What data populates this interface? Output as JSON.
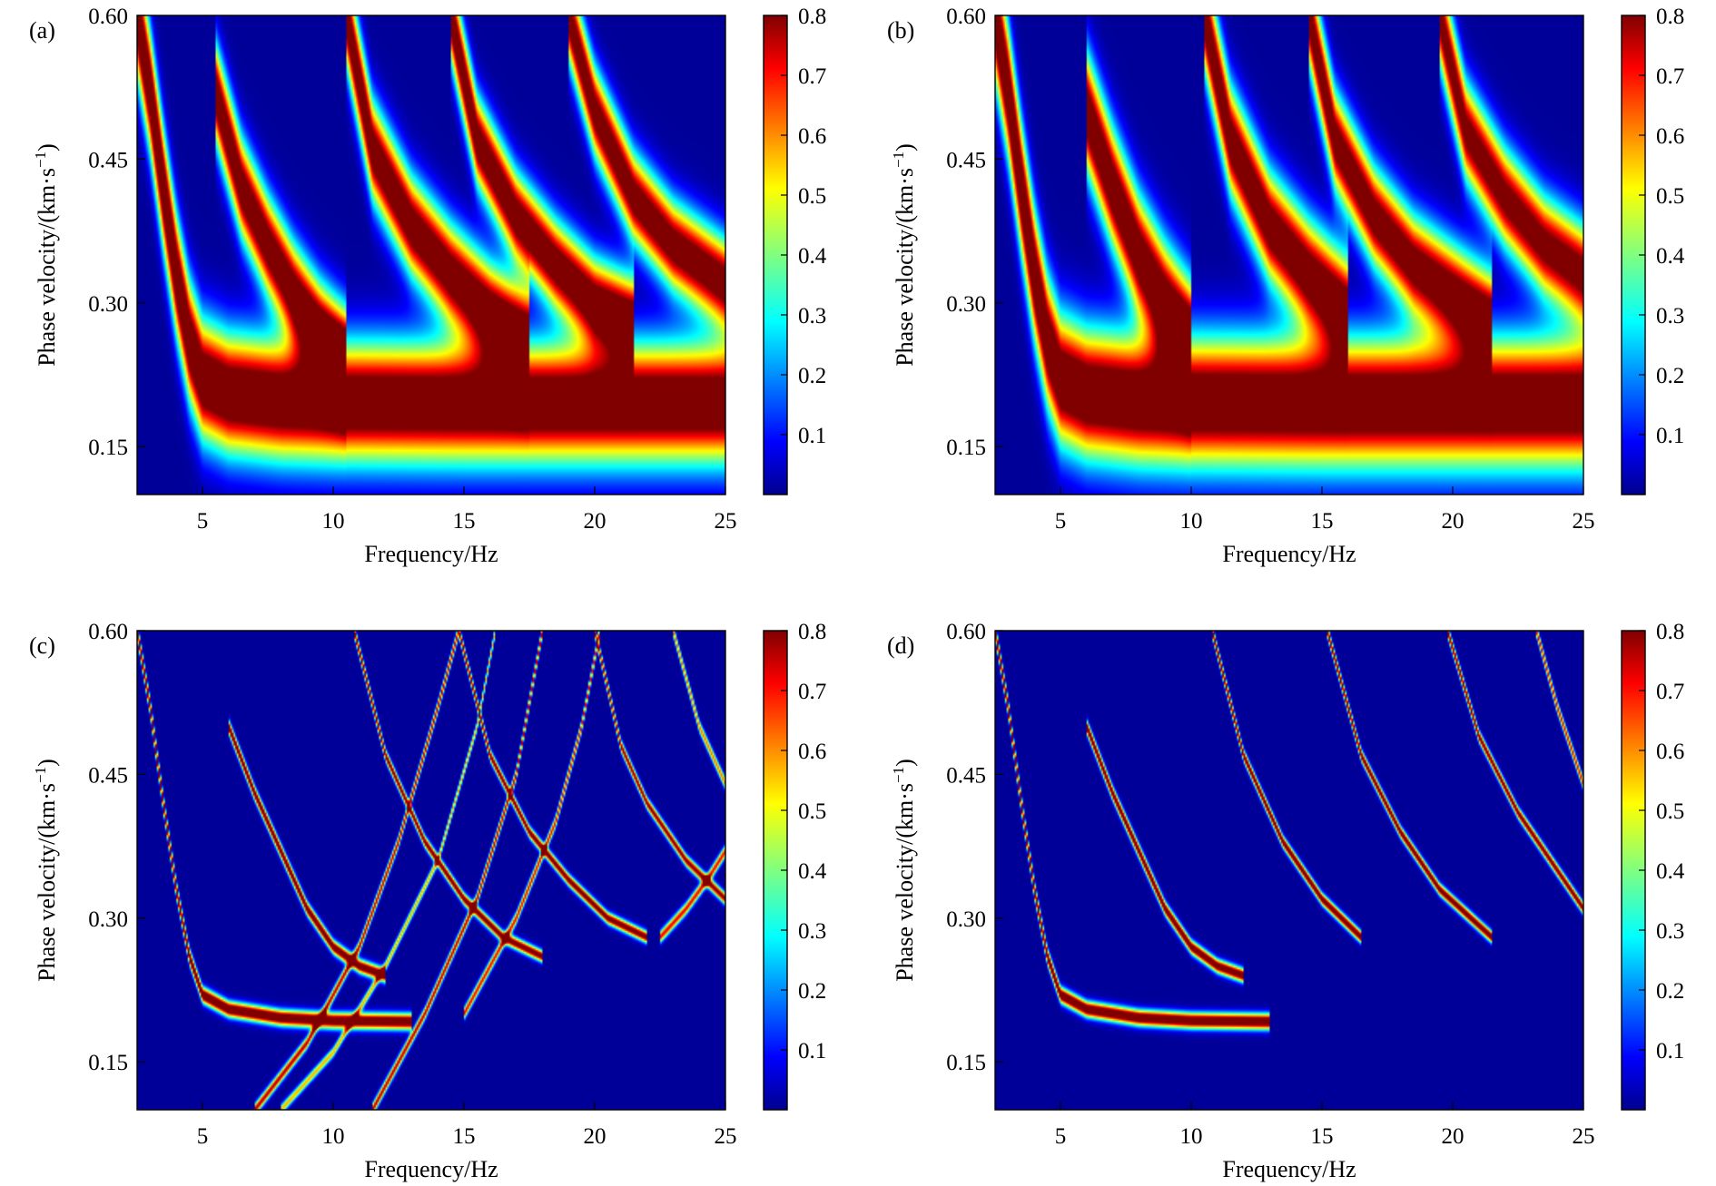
{
  "colors": {
    "colormap": "jet",
    "background_low": "#00008f",
    "ridge_high": "#800000"
  },
  "chart_data": [
    {
      "panel_label": "(a)",
      "type": "heatmap",
      "xlabel": "Frequency/Hz",
      "ylabel_prefix": "Phase velocity/(km·s",
      "ylabel_sup": "−1",
      "ylabel_suffix": ")",
      "xlim": [
        2.5,
        25
      ],
      "ylim": [
        0.1,
        0.6
      ],
      "xticks": [
        5,
        10,
        15,
        20,
        25
      ],
      "xtick_labels": [
        "5",
        "10",
        "15",
        "20",
        "25"
      ],
      "yticks": [
        0.15,
        0.3,
        0.45,
        0.6
      ],
      "ytick_labels": [
        "0.15",
        "0.30",
        "0.45",
        "0.60"
      ],
      "colorbar": {
        "ticks": [
          0.1,
          0.2,
          0.3,
          0.4,
          0.5,
          0.6,
          0.7,
          0.8
        ],
        "tick_labels": [
          "0.1",
          "0.2",
          "0.3",
          "0.4",
          "0.5",
          "0.6",
          "0.7",
          "0.8"
        ],
        "range": [
          0,
          0.8
        ]
      },
      "modes": [
        {
          "x": [
            2.5,
            3.0,
            3.5,
            4.0,
            4.5,
            5.0,
            6.0,
            8.0,
            10.0,
            15.0,
            20.0,
            25.0
          ],
          "y": [
            0.6,
            0.52,
            0.42,
            0.33,
            0.26,
            0.22,
            0.205,
            0.198,
            0.196,
            0.195,
            0.195,
            0.195
          ],
          "amp": 0.95,
          "width": 0.06
        },
        {
          "x": [
            5.5,
            6.5,
            7.5,
            8.5,
            9.5,
            10.5
          ],
          "y": [
            0.52,
            0.42,
            0.36,
            0.31,
            0.27,
            0.24
          ],
          "amp": 0.9,
          "width": 0.05
        },
        {
          "x": [
            10.5,
            11.5,
            13.0,
            14.5,
            16.0,
            17.5
          ],
          "y": [
            0.6,
            0.46,
            0.38,
            0.33,
            0.29,
            0.26
          ],
          "amp": 0.9,
          "width": 0.05
        },
        {
          "x": [
            14.5,
            15.5,
            17.0,
            18.5,
            20.0,
            21.5
          ],
          "y": [
            0.6,
            0.47,
            0.39,
            0.34,
            0.3,
            0.28
          ],
          "amp": 0.9,
          "width": 0.045
        },
        {
          "x": [
            19.0,
            20.0,
            21.5,
            23.0,
            24.5,
            25.0
          ],
          "y": [
            0.6,
            0.5,
            0.41,
            0.36,
            0.33,
            0.32
          ],
          "amp": 0.88,
          "width": 0.045
        }
      ]
    },
    {
      "panel_label": "(b)",
      "type": "heatmap",
      "xlabel": "Frequency/Hz",
      "ylabel_prefix": "Phase velocity/(km·s",
      "ylabel_sup": "−1",
      "ylabel_suffix": ")",
      "xlim": [
        2.5,
        25
      ],
      "ylim": [
        0.1,
        0.6
      ],
      "xticks": [
        5,
        10,
        15,
        20,
        25
      ],
      "xtick_labels": [
        "5",
        "10",
        "15",
        "20",
        "25"
      ],
      "yticks": [
        0.15,
        0.3,
        0.45,
        0.6
      ],
      "ytick_labels": [
        "0.15",
        "0.30",
        "0.45",
        "0.60"
      ],
      "colorbar": {
        "ticks": [
          0.1,
          0.2,
          0.3,
          0.4,
          0.5,
          0.6,
          0.7,
          0.8
        ],
        "tick_labels": [
          "0.1",
          "0.2",
          "0.3",
          "0.4",
          "0.5",
          "0.6",
          "0.7",
          "0.8"
        ],
        "range": [
          0,
          0.8
        ]
      },
      "modes": [
        {
          "x": [
            2.5,
            3.0,
            3.5,
            4.0,
            4.5,
            5.0,
            6.0,
            8.0,
            10.0,
            15.0,
            20.0,
            25.0
          ],
          "y": [
            0.6,
            0.52,
            0.42,
            0.33,
            0.26,
            0.22,
            0.205,
            0.198,
            0.196,
            0.195,
            0.195,
            0.195
          ],
          "amp": 0.95,
          "width": 0.065
        },
        {
          "x": [
            6.0,
            7.0,
            8.0,
            9.0,
            10.0
          ],
          "y": [
            0.5,
            0.42,
            0.35,
            0.3,
            0.26
          ],
          "amp": 0.92,
          "width": 0.06
        },
        {
          "x": [
            10.5,
            11.5,
            13.0,
            14.5,
            16.0
          ],
          "y": [
            0.6,
            0.47,
            0.38,
            0.33,
            0.29
          ],
          "amp": 0.9,
          "width": 0.055
        },
        {
          "x": [
            14.5,
            15.5,
            17.0,
            18.5,
            20.0,
            21.5
          ],
          "y": [
            0.6,
            0.47,
            0.39,
            0.34,
            0.31,
            0.28
          ],
          "amp": 0.88,
          "width": 0.05
        },
        {
          "x": [
            19.5,
            20.5,
            22.0,
            23.5,
            25.0
          ],
          "y": [
            0.6,
            0.48,
            0.41,
            0.36,
            0.33
          ],
          "amp": 0.85,
          "width": 0.05
        }
      ]
    },
    {
      "panel_label": "(c)",
      "type": "heatmap",
      "xlabel": "Frequency/Hz",
      "ylabel_prefix": "Phase velocity/(km·s",
      "ylabel_sup": "−1",
      "ylabel_suffix": ")",
      "xlim": [
        2.5,
        25
      ],
      "ylim": [
        0.1,
        0.6
      ],
      "xticks": [
        5,
        10,
        15,
        20,
        25
      ],
      "xtick_labels": [
        "5",
        "10",
        "15",
        "20",
        "25"
      ],
      "yticks": [
        0.15,
        0.3,
        0.45,
        0.6
      ],
      "ytick_labels": [
        "0.15",
        "0.30",
        "0.45",
        "0.60"
      ],
      "colorbar": {
        "ticks": [
          0.1,
          0.2,
          0.3,
          0.4,
          0.5,
          0.6,
          0.7,
          0.8
        ],
        "tick_labels": [
          "0.1",
          "0.2",
          "0.3",
          "0.4",
          "0.5",
          "0.6",
          "0.7",
          "0.8"
        ],
        "range": [
          0,
          0.8
        ]
      },
      "modes": [
        {
          "x": [
            2.5,
            3.0,
            3.5,
            4.0,
            4.5,
            5.0,
            6.0,
            8.0,
            10.0,
            13.0
          ],
          "y": [
            0.6,
            0.52,
            0.42,
            0.33,
            0.26,
            0.22,
            0.205,
            0.196,
            0.193,
            0.192
          ],
          "amp": 0.95,
          "width": 0.008
        },
        {
          "x": [
            6.0,
            7.0,
            8.0,
            9.0,
            10.0,
            11.0,
            12.0
          ],
          "y": [
            0.5,
            0.43,
            0.37,
            0.31,
            0.27,
            0.25,
            0.24
          ],
          "amp": 0.9,
          "width": 0.007
        },
        {
          "x": [
            10.8,
            12.0,
            13.5,
            15.0,
            16.5,
            18.0
          ],
          "y": [
            0.6,
            0.47,
            0.38,
            0.32,
            0.28,
            0.26
          ],
          "amp": 0.85,
          "width": 0.006
        },
        {
          "x": [
            14.8,
            16.0,
            17.5,
            19.0,
            20.5,
            22.0
          ],
          "y": [
            0.6,
            0.47,
            0.39,
            0.34,
            0.3,
            0.28
          ],
          "amp": 0.85,
          "width": 0.006
        },
        {
          "x": [
            20.0,
            21.0,
            22.0,
            23.5,
            25.0
          ],
          "y": [
            0.6,
            0.48,
            0.42,
            0.36,
            0.32
          ],
          "amp": 0.8,
          "width": 0.006
        },
        {
          "x": [
            7.0,
            9.0,
            11.0,
            12.5,
            14.0,
            14.8
          ],
          "y": [
            0.1,
            0.17,
            0.27,
            0.38,
            0.52,
            0.6
          ],
          "amp": 0.75,
          "width": 0.006
        },
        {
          "x": [
            8.0,
            10.0,
            12.0,
            14.0,
            15.5,
            16.2
          ],
          "y": [
            0.1,
            0.16,
            0.25,
            0.36,
            0.5,
            0.6
          ],
          "amp": 0.55,
          "width": 0.005
        },
        {
          "x": [
            11.5,
            13.5,
            15.5,
            17.0,
            18.0
          ],
          "y": [
            0.1,
            0.2,
            0.32,
            0.45,
            0.6
          ],
          "amp": 0.75,
          "width": 0.006
        },
        {
          "x": [
            15.0,
            17.0,
            18.5,
            19.5,
            20.2
          ],
          "y": [
            0.2,
            0.3,
            0.4,
            0.5,
            0.6
          ],
          "amp": 0.7,
          "width": 0.006
        },
        {
          "x": [
            22.5,
            23.5,
            24.3,
            25.0
          ],
          "y": [
            0.28,
            0.31,
            0.34,
            0.37
          ],
          "amp": 0.7,
          "width": 0.006
        },
        {
          "x": [
            23.0,
            24.0,
            25.0
          ],
          "y": [
            0.6,
            0.5,
            0.44
          ],
          "amp": 0.6,
          "width": 0.006
        }
      ]
    },
    {
      "panel_label": "(d)",
      "type": "heatmap",
      "xlabel": "Frequency/Hz",
      "ylabel_prefix": "Phase velocity/(km·s",
      "ylabel_sup": "−1",
      "ylabel_suffix": ")",
      "xlim": [
        2.5,
        25
      ],
      "ylim": [
        0.1,
        0.6
      ],
      "xticks": [
        5,
        10,
        15,
        20,
        25
      ],
      "xtick_labels": [
        "5",
        "10",
        "15",
        "20",
        "25"
      ],
      "yticks": [
        0.15,
        0.3,
        0.45,
        0.6
      ],
      "ytick_labels": [
        "0.15",
        "0.30",
        "0.45",
        "0.60"
      ],
      "colorbar": {
        "ticks": [
          0.1,
          0.2,
          0.3,
          0.4,
          0.5,
          0.6,
          0.7,
          0.8
        ],
        "tick_labels": [
          "0.1",
          "0.2",
          "0.3",
          "0.4",
          "0.5",
          "0.6",
          "0.7",
          "0.8"
        ],
        "range": [
          0,
          0.8
        ]
      },
      "modes": [
        {
          "x": [
            2.5,
            3.0,
            3.5,
            4.0,
            4.5,
            5.0,
            6.0,
            8.0,
            10.0,
            13.0
          ],
          "y": [
            0.6,
            0.52,
            0.42,
            0.33,
            0.26,
            0.22,
            0.205,
            0.196,
            0.193,
            0.192
          ],
          "amp": 0.95,
          "width": 0.008
        },
        {
          "x": [
            6.0,
            7.0,
            8.0,
            9.0,
            10.0,
            11.0,
            12.0
          ],
          "y": [
            0.5,
            0.43,
            0.37,
            0.31,
            0.27,
            0.25,
            0.24
          ],
          "amp": 0.9,
          "width": 0.007
        },
        {
          "x": [
            10.8,
            12.0,
            13.5,
            15.0,
            16.5
          ],
          "y": [
            0.6,
            0.47,
            0.38,
            0.32,
            0.28
          ],
          "amp": 0.9,
          "width": 0.006
        },
        {
          "x": [
            15.2,
            16.5,
            18.0,
            19.5,
            21.5
          ],
          "y": [
            0.6,
            0.47,
            0.39,
            0.33,
            0.28
          ],
          "amp": 0.88,
          "width": 0.006
        },
        {
          "x": [
            19.8,
            21.0,
            22.5,
            24.0,
            25.0
          ],
          "y": [
            0.6,
            0.49,
            0.41,
            0.35,
            0.31
          ],
          "amp": 0.85,
          "width": 0.006
        },
        {
          "x": [
            23.2,
            24.0,
            25.0
          ],
          "y": [
            0.6,
            0.52,
            0.44
          ],
          "amp": 0.7,
          "width": 0.006
        }
      ]
    }
  ]
}
